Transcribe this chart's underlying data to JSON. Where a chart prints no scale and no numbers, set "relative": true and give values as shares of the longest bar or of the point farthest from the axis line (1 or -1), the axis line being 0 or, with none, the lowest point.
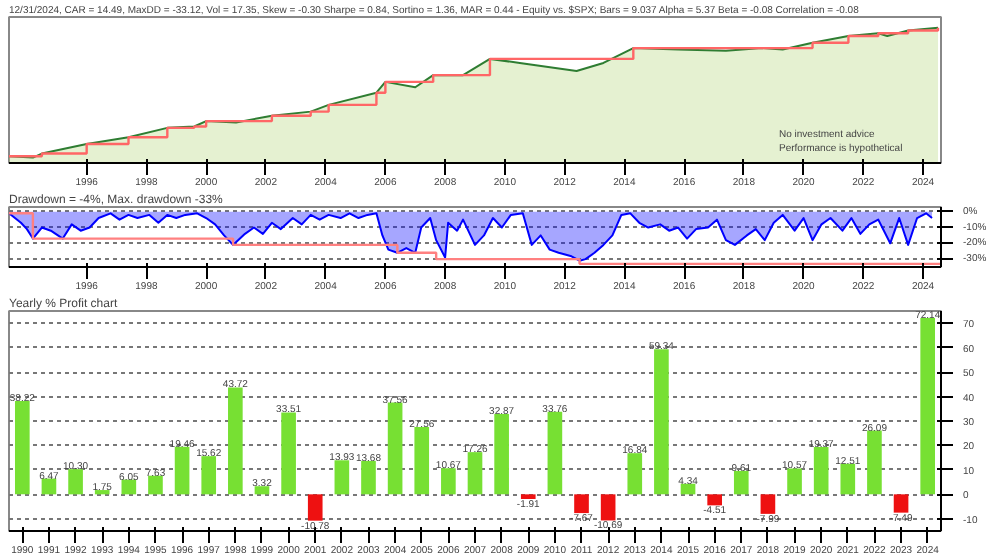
{
  "chart_data": [
    {
      "type": "area",
      "title": "12/31/2024, CAR = 14.49, MaxDD = -33.12, Vol = 17.35, Skew = -0.30 Sharpe = 0.84, Sortino = 1.36, MAR = 0.44 - Equity vs. $SPX; Bars = 9.037 Alpha = 5.37 Beta = -0.08 Correlation = -0.08",
      "relative": true,
      "tick_labels": "x",
      "xlim": [
        1993.4,
        2024.6
      ],
      "xticks": [
        1996,
        1998,
        2000,
        2002,
        2004,
        2006,
        2008,
        2010,
        2012,
        2014,
        2016,
        2018,
        2020,
        2022,
        2024
      ],
      "series": [
        {
          "type": "area",
          "color": "#b5d77a",
          "x": [
            1993.4,
            1994.2,
            1994.5,
            1996,
            1997.4,
            1998.7,
            1999.6,
            2000,
            2001,
            2002.2,
            2003.5,
            2004.1,
            2005.7,
            2006,
            2007,
            2007.6,
            2008.6,
            2009.5,
            2010.5,
            2012.4,
            2013.3,
            2014.3,
            2015.8,
            2017.4,
            2018.6,
            2019.3,
            2020.3,
            2021.5,
            2022.5,
            2022.8,
            2023.5,
            2024.5
          ],
          "values": [
            0.05,
            0.04,
            0.07,
            0.14,
            0.19,
            0.26,
            0.27,
            0.31,
            0.3,
            0.35,
            0.38,
            0.43,
            0.52,
            0.6,
            0.56,
            0.65,
            0.65,
            0.77,
            0.74,
            0.68,
            0.74,
            0.85,
            0.84,
            0.83,
            0.85,
            0.84,
            0.89,
            0.94,
            0.96,
            0.94,
            0.98,
            1.0
          ]
        },
        {
          "type": "step",
          "color": "#ff6666",
          "x": [
            1993.4,
            1994.2,
            1994.5,
            1996,
            1997.4,
            1998.7,
            1999.6,
            2000,
            2001,
            2002.2,
            2003.5,
            2004.1,
            2005.7,
            2006,
            2007,
            2007.6,
            2008.6,
            2009.5,
            2010.5,
            2012.4,
            2013.3,
            2014.3,
            2015.8,
            2017.4,
            2018.6,
            2019.3,
            2020.3,
            2021.5,
            2022.5,
            2022.8,
            2023.5,
            2024.5
          ],
          "values": [
            0.05,
            0.05,
            0.07,
            0.14,
            0.19,
            0.26,
            0.27,
            0.31,
            0.31,
            0.35,
            0.38,
            0.43,
            0.52,
            0.6,
            0.6,
            0.65,
            0.65,
            0.77,
            0.77,
            0.77,
            0.77,
            0.85,
            0.85,
            0.85,
            0.85,
            0.85,
            0.89,
            0.94,
            0.96,
            0.96,
            0.98,
            1.0
          ]
        }
      ],
      "annotations": [
        "No investment advice",
        "Performance is hypothetical"
      ]
    },
    {
      "type": "area",
      "title": "Drawdown = -4%, Max. drawdown -33%",
      "grid": "y",
      "xlim": [
        1993.4,
        2024.6
      ],
      "xticks": [
        1996,
        1998,
        2000,
        2002,
        2004,
        2006,
        2008,
        2010,
        2012,
        2014,
        2016,
        2018,
        2020,
        2022,
        2024
      ],
      "ylim": [
        -35,
        3
      ],
      "yticks": [
        {
          "value": 0,
          "label": "0%"
        },
        {
          "value": -10,
          "label": "-10%"
        },
        {
          "value": -20,
          "label": "-20%"
        },
        {
          "value": -30,
          "label": "-30%"
        }
      ],
      "series": [
        {
          "type": "area",
          "color": "#0000ff",
          "x": [
            1993.4,
            1993.8,
            1994.0,
            1994.2,
            1994.5,
            1994.8,
            1995.2,
            1995.5,
            1995.8,
            1996.1,
            1996.4,
            1996.8,
            1997.1,
            1997.4,
            1997.7,
            1998.1,
            1998.4,
            1998.7,
            1999.0,
            1999.3,
            1999.7,
            2000.0,
            2000.3,
            2000.6,
            2000.9,
            2001.3,
            2001.6,
            2001.9,
            2002.2,
            2002.5,
            2002.9,
            2003.2,
            2003.5,
            2003.8,
            2004.1,
            2004.5,
            2004.8,
            2005.1,
            2005.4,
            2005.7,
            2005.9,
            2006.1,
            2006.4,
            2006.7,
            2007.0,
            2007.2,
            2007.5,
            2007.7,
            2008.0,
            2008.1,
            2008.4,
            2008.6,
            2009.0,
            2009.3,
            2009.6,
            2009.9,
            2010.2,
            2010.6,
            2010.9,
            2011.2,
            2011.5,
            2011.8,
            2012.2,
            2012.5,
            2012.7,
            2013.0,
            2013.3,
            2013.6,
            2013.9,
            2014.2,
            2014.5,
            2014.8,
            2015.2,
            2015.5,
            2015.8,
            2016.1,
            2016.4,
            2016.8,
            2017.1,
            2017.4,
            2017.7,
            2018.1,
            2018.4,
            2018.7,
            2019.0,
            2019.3,
            2019.7,
            2020.0,
            2020.3,
            2020.6,
            2020.9,
            2021.3,
            2021.6,
            2021.9,
            2022.2,
            2022.5,
            2022.9,
            2023.2,
            2023.5,
            2023.8,
            2024.1,
            2024.3
          ],
          "values": [
            -1,
            -7,
            -11,
            -17,
            -10,
            -12,
            -17,
            -8,
            -12,
            -10,
            -4,
            -1,
            -5,
            -2,
            -4,
            -2,
            -7,
            -2,
            -4,
            -2,
            -1,
            -4,
            -8,
            -15,
            -21,
            -14,
            -10,
            -14,
            -7,
            -11,
            -4,
            -8,
            -2,
            -5,
            -2,
            -4,
            -1,
            -4,
            -2,
            -1,
            -15,
            -24,
            -26,
            -23,
            -26,
            -10,
            -4,
            -18,
            -29,
            -7,
            -12,
            -5,
            -21,
            -15,
            -4,
            -10,
            -2,
            -1,
            -21,
            -15,
            -24,
            -26,
            -28,
            -31,
            -30,
            -26,
            -21,
            -15,
            -2,
            -1,
            -7,
            -10,
            -8,
            -12,
            -10,
            -17,
            -11,
            -10,
            -5,
            -18,
            -21,
            -15,
            -11,
            -18,
            -7,
            -2,
            -12,
            -4,
            -18,
            -8,
            -4,
            -12,
            -4,
            -14,
            -8,
            -5,
            -20,
            -4,
            -21,
            -4,
            -1,
            -4
          ]
        },
        {
          "type": "step",
          "color": "#ff8080",
          "x": [
            1993.4,
            1994.2,
            2000.9,
            2006.4,
            2007.7,
            2012.5,
            2024.6
          ],
          "values": [
            -1,
            -17,
            -21,
            -26,
            -30,
            -33,
            -33
          ]
        }
      ]
    },
    {
      "type": "bar",
      "title": "Yearly % Profit chart",
      "grid": "y",
      "categories": [
        "1990",
        "1991",
        "1992",
        "1993",
        "1994",
        "1995",
        "1996",
        "1997",
        "1998",
        "1999",
        "2000",
        "2001",
        "2002",
        "2003",
        "2004",
        "2005",
        "2006",
        "2007",
        "2008",
        "2009",
        "2010",
        "2011",
        "2012",
        "2013",
        "2014",
        "2015",
        "2016",
        "2017",
        "2018",
        "2019",
        "2020",
        "2021",
        "2022",
        "2023",
        "2024"
      ],
      "values": [
        38.22,
        6.47,
        10.3,
        1.75,
        6.05,
        7.63,
        19.46,
        15.62,
        43.72,
        3.32,
        33.51,
        -10.78,
        13.93,
        13.68,
        37.56,
        27.56,
        10.67,
        17.26,
        32.87,
        -1.91,
        33.76,
        -7.67,
        -10.69,
        16.84,
        59.34,
        4.34,
        -4.51,
        9.61,
        -7.99,
        10.57,
        19.37,
        12.51,
        26.09,
        -7.49,
        72.14
      ],
      "colors": [
        "#77e033",
        "#77e033",
        "#77e033",
        "#77e033",
        "#77e033",
        "#77e033",
        "#77e033",
        "#77e033",
        "#77e033",
        "#77e033",
        "#77e033",
        "#ee1111",
        "#77e033",
        "#77e033",
        "#77e033",
        "#77e033",
        "#77e033",
        "#77e033",
        "#77e033",
        "#ee1111",
        "#77e033",
        "#ee1111",
        "#ee1111",
        "#77e033",
        "#77e033",
        "#77e033",
        "#ee1111",
        "#77e033",
        "#ee1111",
        "#77e033",
        "#77e033",
        "#77e033",
        "#77e033",
        "#ee1111",
        "#77e033"
      ],
      "value_labels": [
        "38.22",
        "6.47",
        "10.30",
        "1.75",
        "6.05",
        "7.63",
        "19.46",
        "15.62",
        "43.72",
        "3.32",
        "33.51",
        "-10.78",
        "13.93",
        "13.68",
        "37.56",
        "27.56",
        "10.67",
        "17.26",
        "32.87",
        "-1.91",
        "33.76",
        "-7.67",
        "-10.69",
        "16.84",
        "59.34",
        "4.34",
        "-4.51",
        "9.61",
        "-7.99",
        "10.57",
        "19.37",
        "12.51",
        "26.09",
        "-7.49",
        "72.14"
      ],
      "ylim": [
        -15,
        75
      ],
      "yticks": [
        -10,
        0,
        10,
        20,
        30,
        40,
        50,
        60,
        70
      ]
    }
  ]
}
